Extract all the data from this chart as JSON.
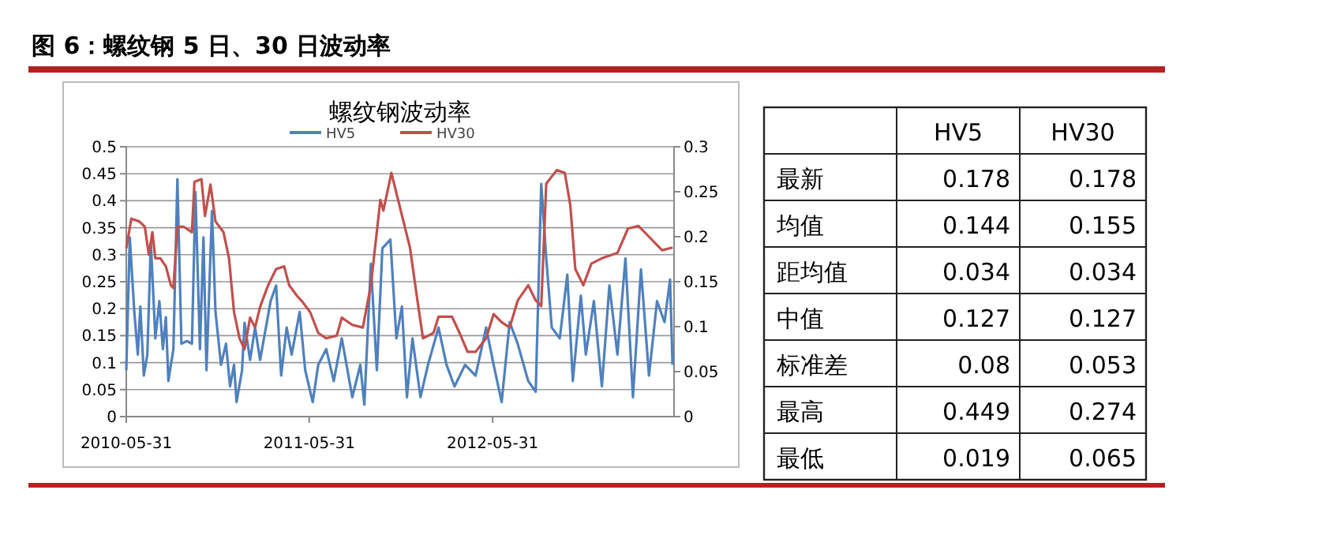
{
  "chart_data": [
    {
      "type": "line",
      "title": "螺纹钢波动率",
      "annotations": [
        "图 6：螺纹钢 5 日、30 日波动率"
      ],
      "xlim": [
        "2010-05-31",
        "2013-05-28"
      ],
      "xticks": [
        "2010-05-31",
        "2011-05-31",
        "2012-05-31"
      ],
      "ylim": [
        0,
        0.5
      ],
      "yticks": [
        0,
        0.05,
        0.1,
        0.15,
        0.2,
        0.25,
        0.3,
        0.35,
        0.4,
        0.45,
        0.5
      ],
      "y2lim": [
        0,
        0.3
      ],
      "y2ticks": [
        0,
        0.05,
        0.1,
        0.15,
        0.2,
        0.25,
        0.3
      ],
      "grid": "y",
      "legend": "top",
      "line_style": "solid",
      "series": [
        {
          "name": "HV5",
          "color": "#4f81bd",
          "x": [
            "2010-05-31",
            "2010-06-07",
            "2010-06-16",
            "2010-06-23",
            "2010-06-28",
            "2010-07-05",
            "2010-07-12",
            "2010-07-19",
            "2010-07-28",
            "2010-08-05",
            "2010-08-12",
            "2010-08-18",
            "2010-08-23",
            "2010-09-02",
            "2010-09-10",
            "2010-09-18",
            "2010-09-29",
            "2010-10-09",
            "2010-10-16",
            "2010-10-25",
            "2010-11-01",
            "2010-11-07",
            "2010-11-18",
            "2010-11-25",
            "2010-12-06",
            "2010-12-16",
            "2010-12-24",
            "2011-01-01",
            "2011-01-06",
            "2011-01-17",
            "2011-01-22",
            "2011-02-02",
            "2011-02-12",
            "2011-02-22",
            "2011-03-15",
            "2011-03-26",
            "2011-04-05",
            "2011-04-16",
            "2011-04-26",
            "2011-05-12",
            "2011-05-23",
            "2011-06-07",
            "2011-06-18",
            "2011-07-04",
            "2011-07-19",
            "2011-08-04",
            "2011-08-25",
            "2011-09-10",
            "2011-09-18",
            "2011-10-01",
            "2011-10-13",
            "2011-10-24",
            "2011-11-09",
            "2011-11-21",
            "2011-12-02",
            "2011-12-12",
            "2011-12-23",
            "2012-01-08",
            "2012-01-23",
            "2012-02-13",
            "2012-02-29",
            "2012-03-16",
            "2012-04-06",
            "2012-04-27",
            "2012-05-18",
            "2012-06-02",
            "2012-06-18",
            "2012-07-04",
            "2012-07-20",
            "2012-08-10",
            "2012-08-25",
            "2012-09-05",
            "2012-09-15",
            "2012-09-26",
            "2012-10-12",
            "2012-10-27",
            "2012-11-07",
            "2012-11-23",
            "2012-12-03",
            "2012-12-19",
            "2013-01-04",
            "2013-01-19",
            "2013-02-04",
            "2013-02-20",
            "2013-03-07",
            "2013-03-23",
            "2013-04-08",
            "2013-04-24",
            "2013-05-09",
            "2013-05-20",
            "2013-05-25"
          ],
          "values": [
            0.086,
            0.332,
            0.194,
            0.115,
            0.204,
            0.076,
            0.115,
            0.322,
            0.145,
            0.214,
            0.125,
            0.184,
            0.066,
            0.125,
            0.44,
            0.135,
            0.14,
            0.135,
            0.416,
            0.125,
            0.332,
            0.086,
            0.381,
            0.194,
            0.096,
            0.135,
            0.056,
            0.096,
            0.027,
            0.086,
            0.174,
            0.105,
            0.165,
            0.105,
            0.214,
            0.243,
            0.076,
            0.165,
            0.115,
            0.194,
            0.086,
            0.027,
            0.096,
            0.125,
            0.066,
            0.145,
            0.036,
            0.096,
            0.022,
            0.283,
            0.086,
            0.312,
            0.328,
            0.145,
            0.204,
            0.036,
            0.145,
            0.036,
            0.096,
            0.165,
            0.096,
            0.056,
            0.096,
            0.076,
            0.165,
            0.096,
            0.027,
            0.175,
            0.135,
            0.066,
            0.046,
            0.431,
            0.293,
            0.165,
            0.145,
            0.263,
            0.066,
            0.224,
            0.115,
            0.214,
            0.056,
            0.243,
            0.115,
            0.293,
            0.036,
            0.273,
            0.076,
            0.214,
            0.175,
            0.254,
            0.096
          ]
        },
        {
          "name": "HV30",
          "color": "#c0504d",
          "axis": "y2",
          "x": [
            "2010-05-31",
            "2010-06-10",
            "2010-06-26",
            "2010-07-07",
            "2010-07-15",
            "2010-07-22",
            "2010-07-28",
            "2010-08-07",
            "2010-08-18",
            "2010-08-28",
            "2010-09-02",
            "2010-09-10",
            "2010-09-23",
            "2010-10-09",
            "2010-10-14",
            "2010-10-28",
            "2010-11-04",
            "2010-11-15",
            "2010-11-25",
            "2010-12-11",
            "2010-12-22",
            "2011-01-01",
            "2011-01-12",
            "2011-01-22",
            "2011-02-02",
            "2011-02-12",
            "2011-02-22",
            "2011-03-10",
            "2011-03-26",
            "2011-04-11",
            "2011-04-21",
            "2011-05-07",
            "2011-05-17",
            "2011-06-02",
            "2011-06-18",
            "2011-07-04",
            "2011-07-25",
            "2011-08-04",
            "2011-08-25",
            "2011-09-15",
            "2011-10-01",
            "2011-10-20",
            "2011-10-26",
            "2011-11-11",
            "2011-11-27",
            "2011-12-18",
            "2012-01-02",
            "2012-01-13",
            "2012-02-03",
            "2012-02-13",
            "2012-03-11",
            "2012-03-26",
            "2012-04-11",
            "2012-04-27",
            "2012-05-18",
            "2012-06-02",
            "2012-06-18",
            "2012-07-04",
            "2012-07-20",
            "2012-08-10",
            "2012-08-25",
            "2012-09-05",
            "2012-09-15",
            "2012-10-06",
            "2012-10-22",
            "2012-11-02",
            "2012-11-12",
            "2012-11-28",
            "2012-12-14",
            "2013-01-04",
            "2013-02-04",
            "2013-02-25",
            "2013-03-18",
            "2013-04-08",
            "2013-05-04",
            "2013-05-25"
          ],
          "values": [
            0.187,
            0.22,
            0.217,
            0.211,
            0.18,
            0.205,
            0.176,
            0.176,
            0.167,
            0.146,
            0.143,
            0.211,
            0.211,
            0.205,
            0.261,
            0.264,
            0.223,
            0.258,
            0.217,
            0.205,
            0.176,
            0.116,
            0.087,
            0.075,
            0.11,
            0.099,
            0.122,
            0.146,
            0.164,
            0.167,
            0.146,
            0.134,
            0.128,
            0.116,
            0.093,
            0.087,
            0.09,
            0.11,
            0.102,
            0.099,
            0.146,
            0.241,
            0.229,
            0.271,
            0.235,
            0.188,
            0.129,
            0.087,
            0.093,
            0.111,
            0.111,
            0.093,
            0.072,
            0.072,
            0.087,
            0.114,
            0.105,
            0.099,
            0.129,
            0.146,
            0.129,
            0.123,
            0.259,
            0.274,
            0.271,
            0.235,
            0.164,
            0.146,
            0.17,
            0.176,
            0.182,
            0.209,
            0.212,
            0.2,
            0.185,
            0.188
          ]
        }
      ]
    },
    {
      "type": "other",
      "categories": [
        "最新",
        "均值",
        "距均值",
        "中值",
        "标准差",
        "最高",
        "最低"
      ],
      "data_labels": true,
      "series": [
        {
          "name": "HV5",
          "values": [
            0.178,
            0.144,
            0.034,
            0.127,
            0.08,
            0.449,
            0.019
          ]
        },
        {
          "name": "HV30",
          "values": [
            0.178,
            0.155,
            0.034,
            0.127,
            0.053,
            0.274,
            0.065
          ]
        }
      ]
    }
  ]
}
